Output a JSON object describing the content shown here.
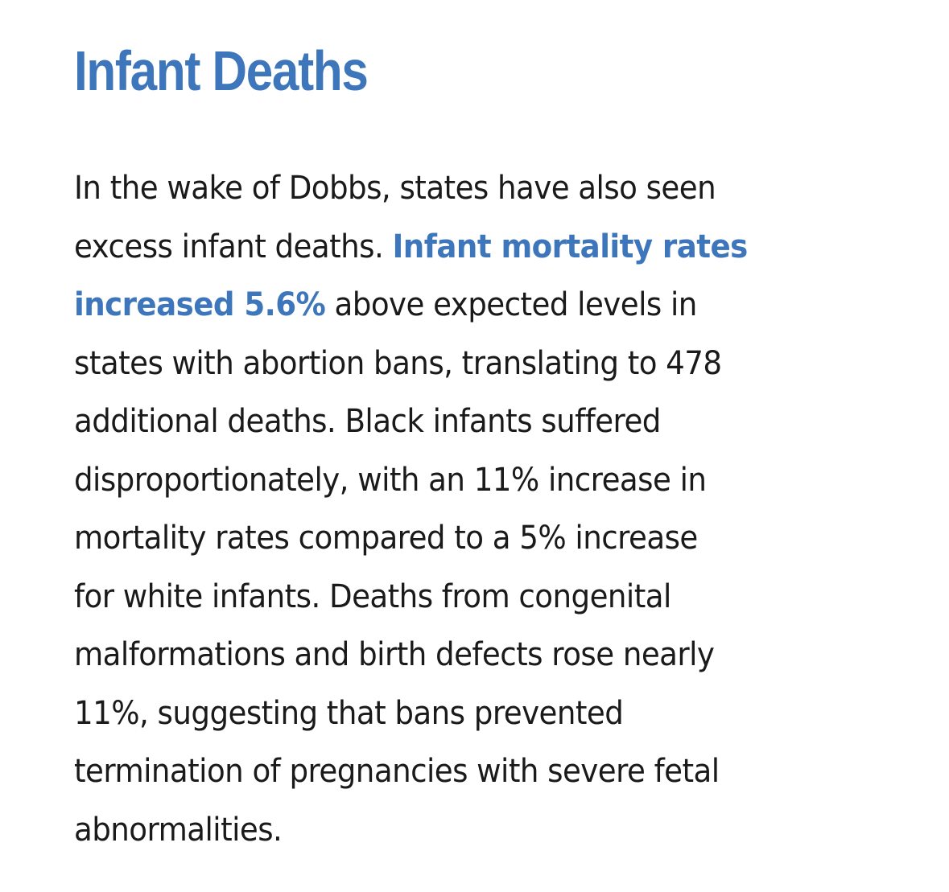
{
  "article": {
    "heading": "Infant Deaths",
    "lines": [
      {
        "text": "In the wake of Dobbs, states have also seen"
      },
      {
        "text": "excess infant deaths. ",
        "highlight": "Infant mortality rates"
      },
      {
        "highlight": "increased 5.6%",
        "text": " above expected levels in"
      },
      {
        "text": "states with abortion bans, translating to 478"
      },
      {
        "text": "additional deaths. Black infants suffered"
      },
      {
        "text": "disproportionately, with an 11% increase in"
      },
      {
        "text": "mortality rates compared to a 5% increase"
      },
      {
        "text": "for white infants. Deaths from congenital"
      },
      {
        "text": "malformations and birth defects rose nearly"
      },
      {
        "text": "11%, suggesting that bans prevented"
      },
      {
        "text": "termination of pregnancies with severe fetal"
      },
      {
        "text": "abnormalities."
      }
    ]
  },
  "colors": {
    "accent": "#3e76bb",
    "text": "#1a1a1a",
    "background": "#ffffff"
  }
}
